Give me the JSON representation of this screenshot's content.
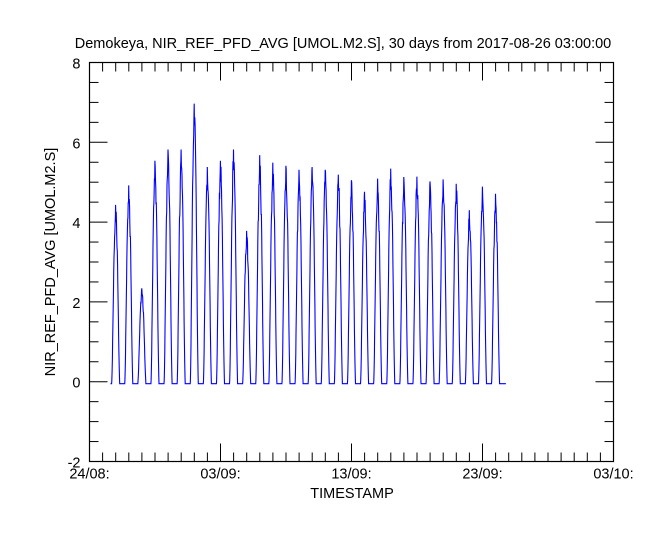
{
  "chart_data": {
    "type": "line",
    "title": "Demokeya, NIR_REF_PFD_AVG [UMOL.M2.S], 30 days from  2017-08-26 03:00:00",
    "xlabel": "TIMESTAMP",
    "ylabel": "NIR_REF_PFD_AVG [UMOL.M2.S]",
    "ylim": [
      -2,
      8
    ],
    "yticks": [
      "-2",
      "0",
      "2",
      "4",
      "6",
      "8"
    ],
    "ytick_values": [
      -2,
      0,
      2,
      4,
      6,
      8
    ],
    "xlim_days_from_24_08": [
      0,
      40
    ],
    "xticks": [
      "24/08:",
      "03/09:",
      "13/09:",
      "23/09:",
      "03/10:"
    ],
    "xtick_days": [
      0,
      10,
      20,
      30,
      40
    ],
    "grid": false,
    "line_color": "#0000ff",
    "series": [
      {
        "name": "NIR_REF_PFD_AVG",
        "description_days": "daily peak values, day 1 = 26/08",
        "x_days_peak": [
          2,
          3,
          4,
          5,
          6,
          7,
          8,
          9,
          10,
          11,
          12,
          13,
          14,
          15,
          16,
          17,
          18,
          19,
          20,
          21,
          22,
          23,
          24,
          25,
          26,
          27,
          28,
          29,
          30,
          31
        ],
        "peak_values": [
          4.43,
          4.92,
          2.34,
          5.54,
          5.82,
          5.82,
          6.97,
          5.38,
          5.54,
          5.82,
          3.78,
          5.68,
          5.49,
          5.41,
          5.31,
          5.38,
          5.31,
          5.19,
          5.05,
          4.76,
          5.09,
          5.34,
          5.13,
          5.14,
          5.02,
          5.07,
          4.96,
          4.3,
          4.89,
          4.71
        ],
        "night_value": -0.05,
        "start_day": 1.6,
        "end_day": 31.8
      }
    ]
  }
}
